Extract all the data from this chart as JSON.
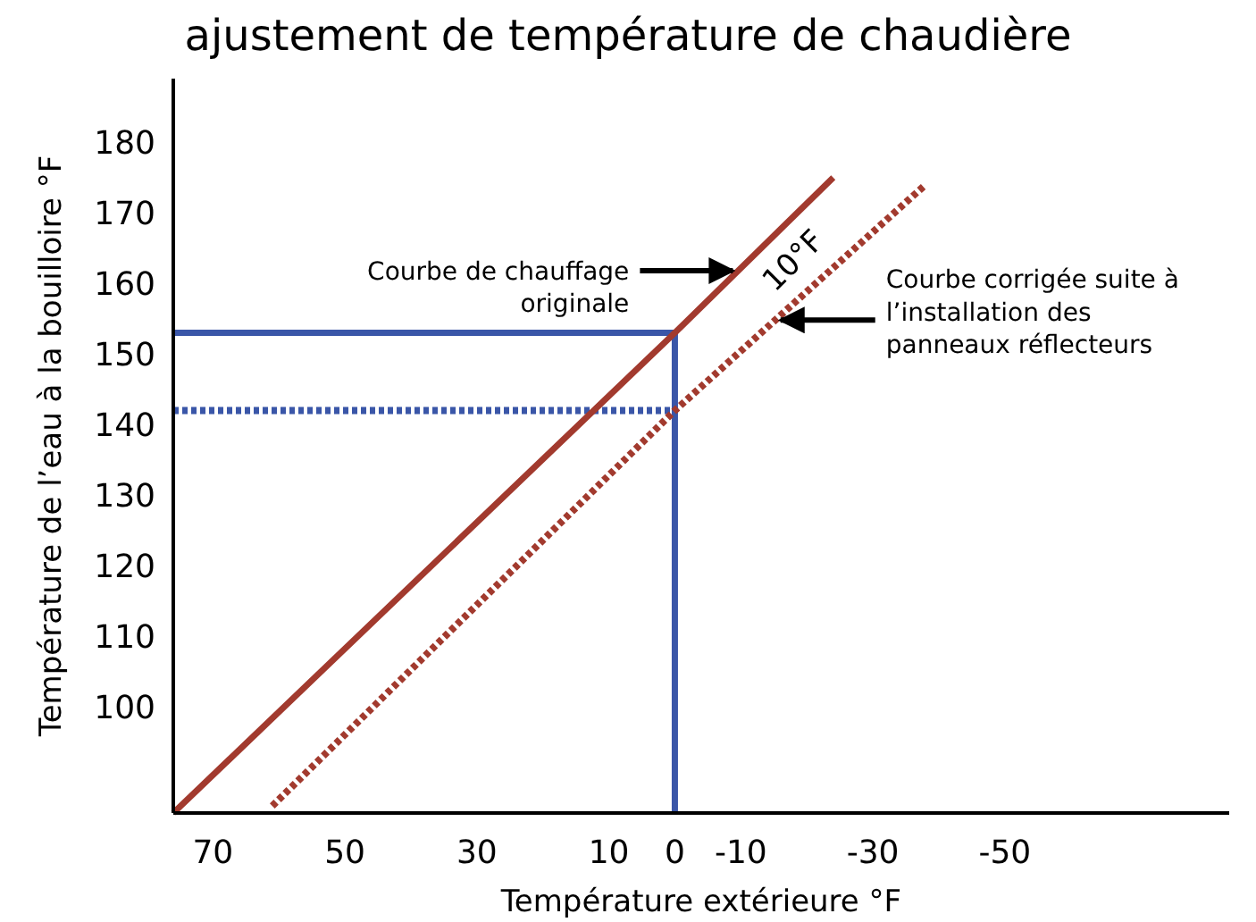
{
  "chart_data": {
    "type": "line",
    "title": "ajustement de température de chaudière",
    "xlabel": "Température extérieure °F",
    "ylabel": "Température de l’eau à la bouilloire °F",
    "xlim": [
      76,
      -84
    ],
    "xticks": [
      70,
      50,
      30,
      10,
      0,
      -10,
      -30,
      -50
    ],
    "ylim": [
      85,
      189
    ],
    "yticks": [
      100,
      110,
      120,
      130,
      140,
      150,
      160,
      170,
      180
    ],
    "grid": false,
    "marker": "none",
    "series": [
      {
        "color": "#3a56a8",
        "line_style": "solid",
        "x": [
          76,
          0,
          0
        ],
        "values": [
          153,
          153,
          85
        ]
      },
      {
        "color": "#3a56a8",
        "line_style": "dotted",
        "x": [
          76,
          0
        ],
        "values": [
          142,
          142
        ]
      },
      {
        "color": "#a23a2e",
        "line_style": "solid",
        "x": [
          76,
          0,
          -24
        ],
        "values": [
          85,
          153,
          175
        ]
      },
      {
        "color": "#a23a2e",
        "line_style": "dotted",
        "x": [
          61,
          0,
          -38
        ],
        "values": [
          86,
          142,
          174
        ]
      }
    ],
    "annotations": [
      {
        "text": "Courbe de chauffage\noriginale",
        "x": -9.6,
        "y": 161.8
      },
      {
        "text": "Courbe corrigée suite à\nl’installation des\npanneaux réflecteurs",
        "x": -15.2,
        "y": 154.8
      },
      "10°F"
    ]
  }
}
